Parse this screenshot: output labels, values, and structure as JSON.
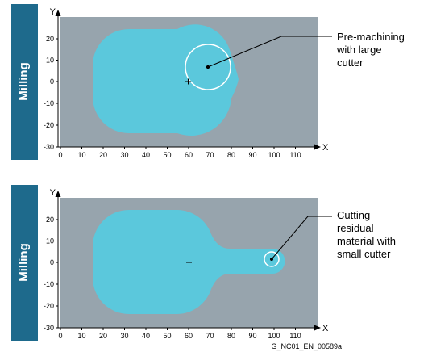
{
  "colors": {
    "side_bar": "#1e6a8c",
    "plot_area": "#97a4ad",
    "workpiece": "#5bc8dc",
    "cutter_outline": "#ffffff",
    "leader_line": "#000000"
  },
  "panels": [
    {
      "side_label": "Milling",
      "callout_lines": [
        "Pre-machining",
        "with large",
        "cutter"
      ],
      "axes": {
        "x_name": "X",
        "y_name": "Y",
        "x_ticks": [
          "0",
          "10",
          "20",
          "30",
          "40",
          "50",
          "60",
          "70",
          "80",
          "90",
          "100",
          "110"
        ],
        "y_ticks": [
          "20",
          "10",
          "0",
          "-10",
          "-20",
          "-30"
        ]
      },
      "icons": [
        "origin-cross-icon",
        "cutter-center-dot-icon",
        "cutter-circle-icon"
      ]
    },
    {
      "side_label": "Milling",
      "callout_lines": [
        "Cutting",
        "residual",
        "material with",
        "small cutter"
      ],
      "axes": {
        "x_name": "X",
        "y_name": "Y",
        "x_ticks": [
          "0",
          "10",
          "20",
          "30",
          "40",
          "50",
          "60",
          "70",
          "80",
          "90",
          "100",
          "110"
        ],
        "y_ticks": [
          "20",
          "10",
          "0",
          "-10",
          "-20",
          "-30"
        ]
      },
      "icons": [
        "origin-cross-icon",
        "cutter-center-dot-icon",
        "cutter-circle-icon"
      ]
    }
  ],
  "figure_id": "G_NC01_EN_00589a"
}
